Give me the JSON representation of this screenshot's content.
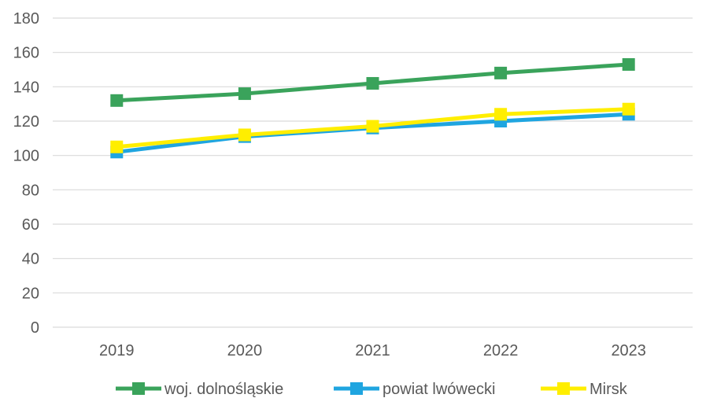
{
  "chart_data": {
    "type": "line",
    "title": "",
    "xlabel": "",
    "ylabel": "",
    "categories": [
      "2019",
      "2020",
      "2021",
      "2022",
      "2023"
    ],
    "ylim": [
      0,
      180
    ],
    "yticks": [
      0,
      20,
      40,
      60,
      80,
      100,
      120,
      140,
      160,
      180
    ],
    "grid": true,
    "legend_position": "bottom",
    "series": [
      {
        "name": "woj. dolnośląskie",
        "color": "#3aa35b",
        "values": [
          132,
          136,
          142,
          148,
          153
        ]
      },
      {
        "name": "powiat lwówecki",
        "color": "#1fa5e0",
        "values": [
          102,
          111,
          116,
          120,
          124
        ]
      },
      {
        "name": "Mirsk",
        "color": "#ffee00",
        "values": [
          105,
          112,
          117,
          124,
          127
        ]
      }
    ]
  }
}
